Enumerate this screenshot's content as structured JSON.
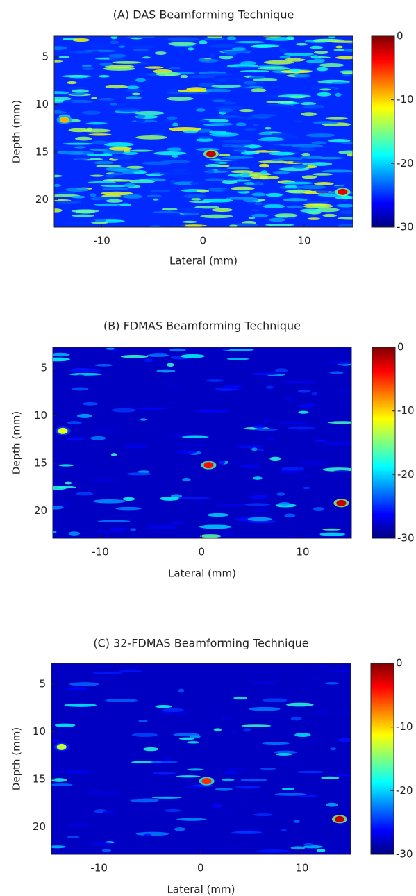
{
  "chart_data": [
    {
      "type": "heatmap",
      "title": "(A) DAS Beamforming Technique",
      "xlabel": "Lateral (mm)",
      "ylabel": "Depth (mm)",
      "xlim": [
        -14.7,
        14.8
      ],
      "ylim": [
        2.8,
        22.9
      ],
      "xticks": [
        -10,
        0,
        10
      ],
      "yticks": [
        5,
        10,
        15,
        20
      ],
      "colorbar": {
        "lim": [
          -30,
          0
        ],
        "ticks": [
          0,
          -10,
          -20,
          -30
        ]
      },
      "colormap": [
        "#00007f",
        "#0000ff",
        "#007fff",
        "#00ffff",
        "#7fff7f",
        "#ffff00",
        "#ff7f00",
        "#ff0000",
        "#7f0000"
      ],
      "background_level": -25,
      "points": {
        "x": [
          -13.7,
          0.8,
          13.8
        ],
        "y": [
          11.6,
          15.2,
          19.2
        ],
        "values": [
          -9,
          -2,
          -3
        ]
      }
    },
    {
      "type": "heatmap",
      "title": "(B) FDMAS Beamforming Technique",
      "xlabel": "Lateral (mm)",
      "ylabel": "Depth (mm)",
      "xlim": [
        -14.7,
        14.8
      ],
      "ylim": [
        2.8,
        22.9
      ],
      "xticks": [
        -10,
        0,
        10
      ],
      "yticks": [
        5,
        10,
        15,
        20
      ],
      "colorbar": {
        "lim": [
          -30,
          0
        ],
        "ticks": [
          0,
          -10,
          -20,
          -30
        ]
      },
      "colormap": [
        "#00007f",
        "#0000ff",
        "#007fff",
        "#00ffff",
        "#7fff7f",
        "#ffff00",
        "#ff7f00",
        "#ff0000",
        "#7f0000"
      ],
      "background_level": -28,
      "points": {
        "x": [
          -13.7,
          0.7,
          13.8
        ],
        "y": [
          11.6,
          15.2,
          19.2
        ],
        "values": [
          -12,
          -4,
          -2
        ]
      }
    },
    {
      "type": "heatmap",
      "title": "(C) 32-FDMAS Beamforming Technique",
      "xlabel": "Lateral (mm)",
      "ylabel": "Depth (mm)",
      "xlim": [
        -14.7,
        14.8
      ],
      "ylim": [
        2.8,
        22.9
      ],
      "xticks": [
        -10,
        0,
        10
      ],
      "yticks": [
        5,
        10,
        15,
        20
      ],
      "colorbar": {
        "lim": [
          -30,
          0
        ],
        "ticks": [
          0,
          -10,
          -20,
          -30
        ]
      },
      "colormap": [
        "#00007f",
        "#0000ff",
        "#007fff",
        "#00ffff",
        "#7fff7f",
        "#ffff00",
        "#ff7f00",
        "#ff0000",
        "#7f0000"
      ],
      "background_level": -28,
      "points": {
        "x": [
          -13.7,
          0.6,
          13.7
        ],
        "y": [
          11.6,
          15.2,
          19.2
        ],
        "values": [
          -13,
          -5,
          -2
        ]
      }
    }
  ]
}
